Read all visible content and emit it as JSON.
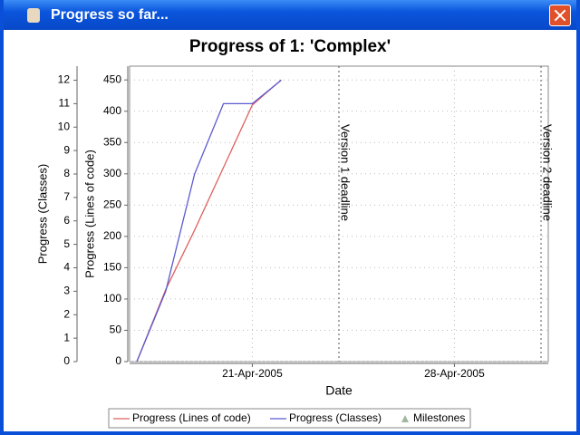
{
  "window": {
    "title": "Progress so far..."
  },
  "chart_data": {
    "type": "line",
    "title": "Progress of 1: 'Complex'",
    "x_label": "Date",
    "y_label": "Progress (Classes)",
    "y2_label": "Progress (Lines of code)",
    "x": [
      "2005-04-17",
      "2005-04-18",
      "2005-04-19",
      "2005-04-20",
      "2005-04-21",
      "2005-04-22"
    ],
    "xlim": [
      "2005-04-17",
      "2005-05-01"
    ],
    "xticks": [
      {
        "value": "2005-04-21",
        "label": "21-Apr-2005"
      },
      {
        "value": "2005-04-28",
        "label": "28-Apr-2005"
      }
    ],
    "ylim": [
      0,
      12.6
    ],
    "yticks": [
      0,
      1,
      2,
      3,
      4,
      5,
      6,
      7,
      8,
      9,
      10,
      11,
      12
    ],
    "y2lim": [
      0,
      472
    ],
    "y2ticks": [
      0,
      50,
      100,
      150,
      200,
      250,
      300,
      350,
      400,
      450
    ],
    "series": [
      {
        "name": "Progress (Lines of code)",
        "color": "#e06060",
        "axis": "y2",
        "values": [
          0,
          115,
          210,
          310,
          410,
          450
        ]
      },
      {
        "name": "Progress (Classes)",
        "color": "#5a5ad0",
        "values": [
          0,
          3,
          8,
          11,
          11,
          12
        ]
      }
    ],
    "milestones": [
      {
        "x": "2005-04-24",
        "label": "Version 1 deadline"
      },
      {
        "x": "2005-05-01",
        "label": "Version 2 deadline"
      }
    ],
    "milestones_name": "Milestones",
    "milestones_color": "#a0b8a0",
    "grid": true
  }
}
